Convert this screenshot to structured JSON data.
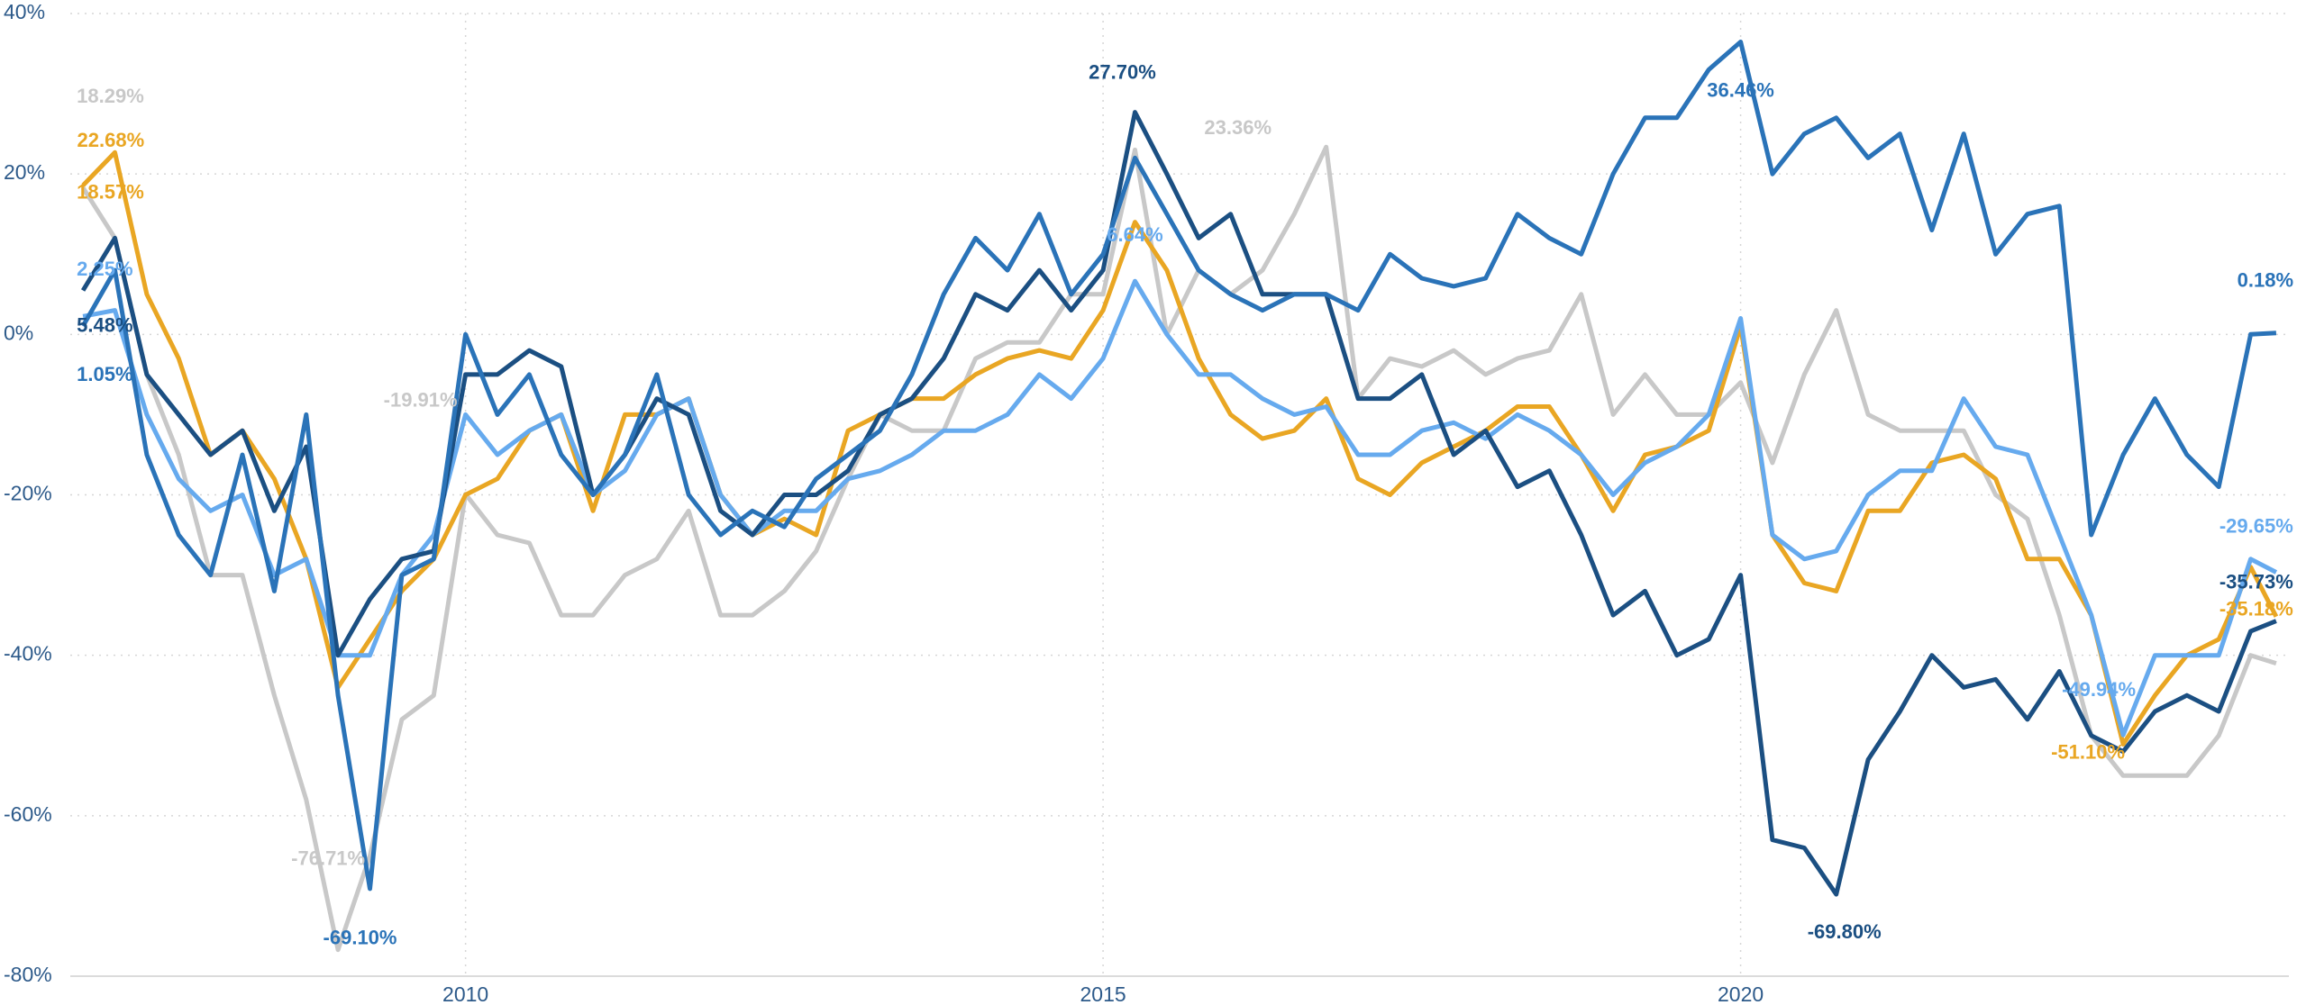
{
  "chart_data": {
    "type": "line",
    "x": [
      2007,
      2007.25,
      2007.5,
      2007.75,
      2008,
      2008.25,
      2008.5,
      2008.75,
      2009,
      2009.25,
      2009.5,
      2009.75,
      2010,
      2010.25,
      2010.5,
      2010.75,
      2011,
      2011.25,
      2011.5,
      2011.75,
      2012,
      2012.25,
      2012.5,
      2012.75,
      2013,
      2013.25,
      2013.5,
      2013.75,
      2014,
      2014.25,
      2014.5,
      2014.75,
      2015,
      2015.25,
      2015.5,
      2015.75,
      2016,
      2016.25,
      2016.5,
      2016.75,
      2017,
      2017.25,
      2017.5,
      2017.75,
      2018,
      2018.25,
      2018.5,
      2018.75,
      2019,
      2019.25,
      2019.5,
      2019.75,
      2020,
      2020.25,
      2020.5,
      2020.75,
      2021,
      2021.25,
      2021.5,
      2021.75,
      2022,
      2022.25,
      2022.5,
      2022.75,
      2023,
      2023.25,
      2023.5,
      2023.75,
      2024,
      2024.2
    ],
    "series": [
      {
        "color": "#2a73b8",
        "values": [
          1.05,
          8,
          -15,
          -25,
          -30,
          -15,
          -32,
          -10,
          -45,
          -69.1,
          -30,
          -28,
          0,
          -10,
          -5,
          -15,
          -20,
          -15,
          -5,
          -20,
          -25,
          -22,
          -24,
          -18,
          -15,
          -12,
          -5,
          5,
          12,
          8,
          15,
          5,
          10,
          22,
          15,
          8,
          5,
          3,
          5,
          5,
          3,
          10,
          7,
          6,
          7,
          15,
          12,
          10,
          20,
          27,
          27,
          33,
          36.46,
          20,
          25,
          27,
          22,
          25,
          13,
          25,
          10,
          15,
          16,
          -25,
          -15,
          -8,
          -15,
          -19,
          0,
          0.18
        ],
        "value_labels": [
          "1.05%",
          null,
          null,
          null,
          null,
          null,
          null,
          null,
          null,
          "-69.10%",
          null,
          null,
          null,
          null,
          null,
          null,
          null,
          null,
          null,
          null,
          null,
          null,
          null,
          null,
          null,
          null,
          null,
          null,
          null,
          null,
          null,
          null,
          null,
          null,
          null,
          null,
          null,
          null,
          null,
          null,
          null,
          null,
          null,
          null,
          null,
          null,
          null,
          null,
          null,
          null,
          null,
          null,
          "36.46%",
          null,
          null,
          null,
          null,
          null,
          null,
          null,
          null,
          null,
          null,
          null,
          null,
          null,
          null,
          null,
          null,
          "0.18%"
        ]
      },
      {
        "color": "#1b4f82",
        "values": [
          5.48,
          12,
          -5,
          -10,
          -15,
          -12,
          -22,
          -14,
          -40,
          -33,
          -28,
          -27,
          -5,
          -5,
          -2,
          -4,
          -20,
          -15,
          -8,
          -10,
          -22,
          -25,
          -20,
          -20,
          -17,
          -10,
          -8,
          -3,
          5,
          3,
          8,
          3,
          8,
          27.7,
          20,
          12,
          15,
          5,
          5,
          5,
          -8,
          -8,
          -5,
          -15,
          -12,
          -19,
          -17,
          -25,
          -35,
          -32,
          -40,
          -38,
          -30,
          -63,
          -64,
          -69.8,
          -53,
          -47,
          -40,
          -44,
          -43,
          -48,
          -42,
          -50,
          -52,
          -47,
          -45,
          -47,
          -37,
          -35.73
        ],
        "value_labels": [
          "5.48%",
          null,
          null,
          null,
          null,
          null,
          null,
          null,
          null,
          null,
          null,
          null,
          null,
          null,
          null,
          null,
          null,
          null,
          null,
          null,
          null,
          null,
          null,
          null,
          null,
          null,
          null,
          null,
          null,
          null,
          null,
          null,
          null,
          "27.70%",
          null,
          null,
          null,
          null,
          null,
          null,
          null,
          null,
          null,
          null,
          null,
          null,
          null,
          null,
          null,
          null,
          null,
          null,
          null,
          null,
          null,
          "-69.80%",
          null,
          null,
          null,
          null,
          null,
          null,
          null,
          null,
          null,
          null,
          null,
          null,
          null,
          "-35.73%"
        ]
      },
      {
        "color": "#66aaee",
        "values": [
          2.25,
          3,
          -10,
          -18,
          -22,
          -20,
          -30,
          -28,
          -40,
          -40,
          -30,
          -25,
          -10,
          -15,
          -12,
          -10,
          -20,
          -17,
          -10,
          -8,
          -20,
          -25,
          -22,
          -22,
          -18,
          -17,
          -15,
          -12,
          -12,
          -10,
          -5,
          -8,
          -3,
          6.64,
          0,
          -5,
          -5,
          -8,
          -10,
          -9,
          -15,
          -15,
          -12,
          -11,
          -13,
          -10,
          -12,
          -15,
          -20,
          -16,
          -14,
          -10,
          2,
          -25,
          -28,
          -27,
          -20,
          -17,
          -17,
          -8,
          -14,
          -15,
          -25,
          -35,
          -49.94,
          -40,
          -40,
          -40,
          -28,
          -29.65
        ],
        "value_labels": [
          "2.25%",
          null,
          null,
          null,
          null,
          null,
          null,
          null,
          null,
          null,
          null,
          null,
          null,
          null,
          null,
          null,
          null,
          null,
          null,
          null,
          null,
          null,
          null,
          null,
          null,
          null,
          null,
          null,
          null,
          null,
          null,
          null,
          null,
          "6.64%",
          null,
          null,
          null,
          null,
          null,
          null,
          null,
          null,
          null,
          null,
          null,
          null,
          null,
          null,
          null,
          null,
          null,
          null,
          null,
          null,
          null,
          null,
          null,
          null,
          null,
          null,
          null,
          null,
          null,
          null,
          "-49.94%",
          null,
          null,
          null,
          null,
          "-29.65%"
        ]
      },
      {
        "color": "#e9a623",
        "values": [
          18.57,
          22.68,
          5,
          -3,
          -15,
          -12,
          -18,
          -28,
          -44,
          -38,
          -32,
          -28,
          -20,
          -18,
          -12,
          -10,
          -22,
          -10,
          -10,
          -8,
          -20,
          -25,
          -23,
          -25,
          -12,
          -10,
          -8,
          -8,
          -5,
          -3,
          -2,
          -3,
          3,
          14,
          8,
          -3,
          -10,
          -13,
          -12,
          -8,
          -18,
          -20,
          -16,
          -14,
          -12,
          -9,
          -9,
          -15,
          -22,
          -15,
          -14,
          -12,
          1,
          -25,
          -31,
          -32,
          -22,
          -22,
          -16,
          -15,
          -18,
          -28,
          -28,
          -35,
          -51.1,
          -45,
          -40,
          -38,
          -29,
          -35.18
        ],
        "value_labels": [
          "18.57%",
          "22.68%",
          null,
          null,
          null,
          null,
          null,
          null,
          null,
          null,
          null,
          null,
          null,
          null,
          null,
          null,
          null,
          null,
          null,
          null,
          null,
          null,
          null,
          null,
          null,
          null,
          null,
          null,
          null,
          null,
          null,
          null,
          null,
          null,
          null,
          null,
          null,
          null,
          null,
          null,
          null,
          null,
          null,
          null,
          null,
          null,
          null,
          null,
          null,
          null,
          null,
          null,
          null,
          null,
          null,
          null,
          null,
          null,
          null,
          null,
          null,
          null,
          null,
          null,
          "-51.10%",
          null,
          null,
          null,
          null,
          "-35.18%"
        ]
      },
      {
        "color": "#c8c8c8",
        "values": [
          18.29,
          12,
          -5,
          -15,
          -30,
          -30,
          -45,
          -58,
          -76.71,
          -65,
          -48,
          -45,
          -19.91,
          -25,
          -26,
          -35,
          -35,
          -30,
          -28,
          -22,
          -35,
          -35,
          -32,
          -27,
          -18,
          -10,
          -12,
          -12,
          -3,
          -1,
          -1,
          5,
          5,
          23,
          0,
          8,
          5,
          8,
          15,
          23.36,
          -8,
          -3,
          -4,
          -2,
          -5,
          -3,
          -2,
          5,
          -10,
          -5,
          -10,
          -10,
          -6,
          -16,
          -5,
          3,
          -10,
          -12,
          -12,
          -12,
          -20,
          -23,
          -35,
          -50,
          -55,
          -55,
          -55,
          -50,
          -40,
          -41
        ],
        "value_labels": [
          "18.29%",
          null,
          null,
          null,
          null,
          null,
          null,
          null,
          "-76.71%",
          null,
          null,
          null,
          "-19.91%",
          null,
          null,
          null,
          null,
          null,
          null,
          null,
          null,
          null,
          null,
          null,
          null,
          null,
          null,
          null,
          null,
          null,
          null,
          null,
          null,
          null,
          null,
          null,
          null,
          null,
          null,
          "23.36%",
          null,
          null,
          null,
          null,
          null,
          null,
          null,
          null,
          null,
          null,
          null,
          null,
          null,
          null,
          null,
          null,
          null,
          null,
          null,
          null,
          null,
          null,
          null,
          null,
          null,
          null,
          null,
          null,
          null,
          null
        ]
      }
    ],
    "xlim": [
      2006.9,
      2024.3
    ],
    "xticks": [
      2010,
      2015,
      2020
    ],
    "ylim": [
      -80,
      40
    ],
    "yticks": [
      {
        "value": -80,
        "label": "-80%"
      },
      {
        "value": -60,
        "label": "-60%"
      },
      {
        "value": -40,
        "label": "-40%"
      },
      {
        "value": -20,
        "label": "-20%"
      },
      {
        "value": 0,
        "label": "0%"
      },
      {
        "value": 20,
        "label": "20%"
      },
      {
        "value": 40,
        "label": "40%"
      }
    ],
    "grid": true
  }
}
